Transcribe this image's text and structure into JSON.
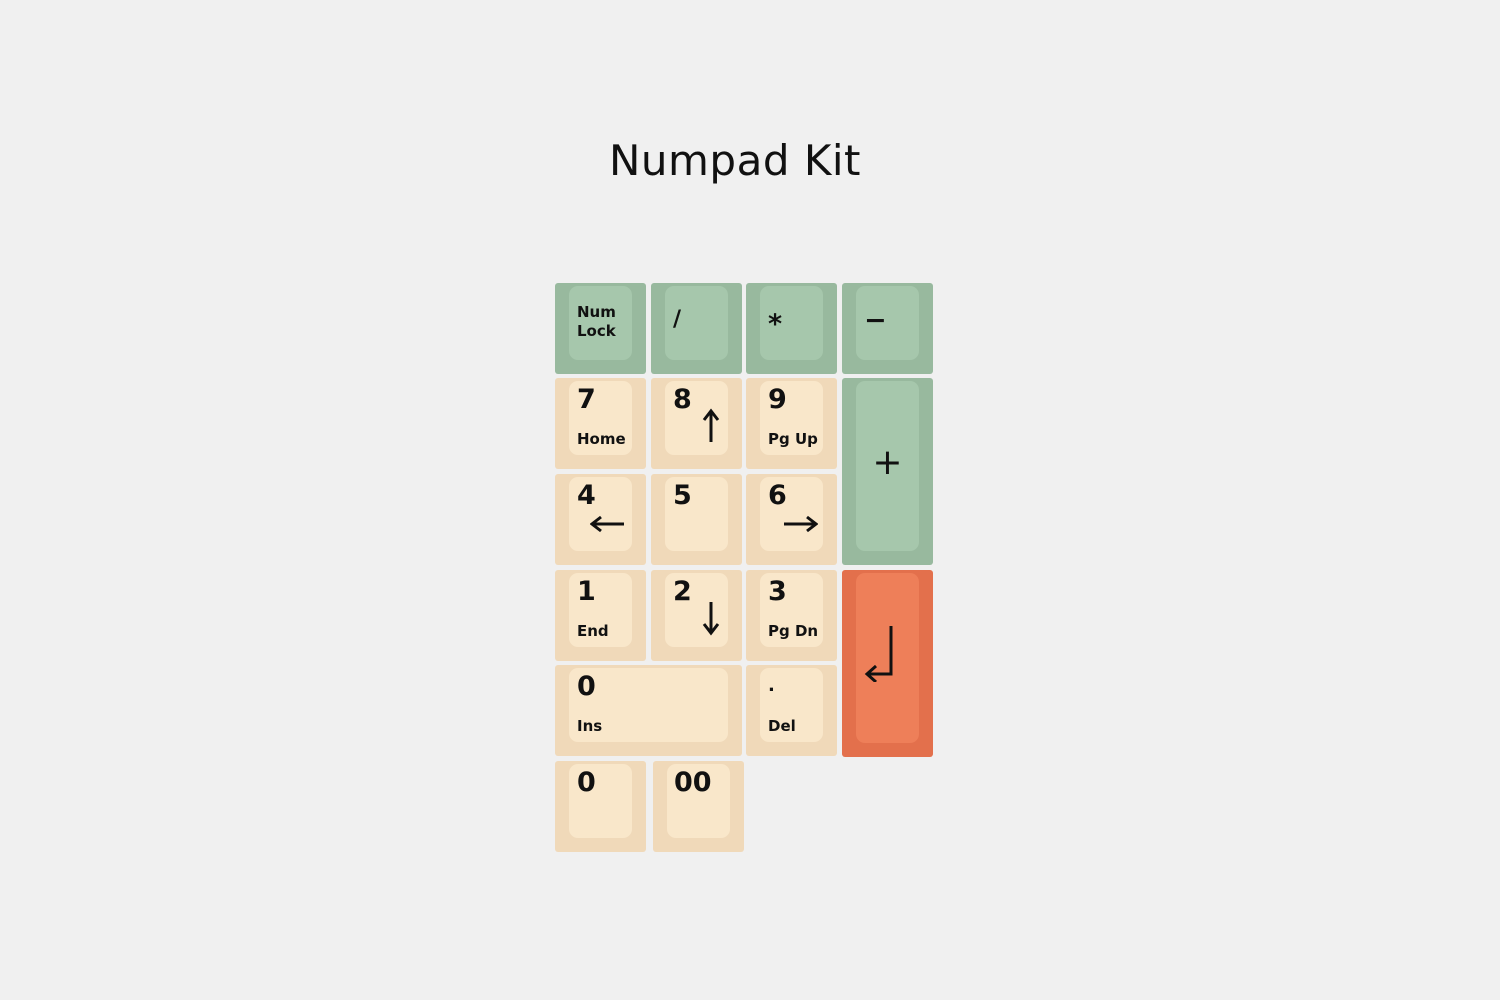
{
  "title": "Numpad Kit",
  "colors": {
    "background": "#f0f0f0",
    "green": "#a6c7ac",
    "beige": "#f9e7ca",
    "orange": "#ee7f59"
  },
  "keys": {
    "numlock": {
      "line1": "Num",
      "line2": "Lock"
    },
    "divide": {
      "main": "/"
    },
    "multiply": {
      "main": "*"
    },
    "minus": {
      "main": "−"
    },
    "plus": {
      "main": "+"
    },
    "k7": {
      "main": "7",
      "sub": "Home"
    },
    "k8": {
      "main": "8",
      "icon": "arrow-up-icon"
    },
    "k9": {
      "main": "9",
      "sub": "Pg Up"
    },
    "k4": {
      "main": "4",
      "icon": "arrow-left-icon"
    },
    "k5": {
      "main": "5"
    },
    "k6": {
      "main": "6",
      "icon": "arrow-right-icon"
    },
    "k1": {
      "main": "1",
      "sub": "End"
    },
    "k2": {
      "main": "2",
      "icon": "arrow-down-icon"
    },
    "k3": {
      "main": "3",
      "sub": "Pg Dn"
    },
    "enter": {
      "icon": "enter-return-icon"
    },
    "k0wide": {
      "main": "0",
      "sub": "Ins"
    },
    "decimal": {
      "main": ".",
      "sub": "Del"
    },
    "k0": {
      "main": "0"
    },
    "k00": {
      "main": "00"
    }
  }
}
